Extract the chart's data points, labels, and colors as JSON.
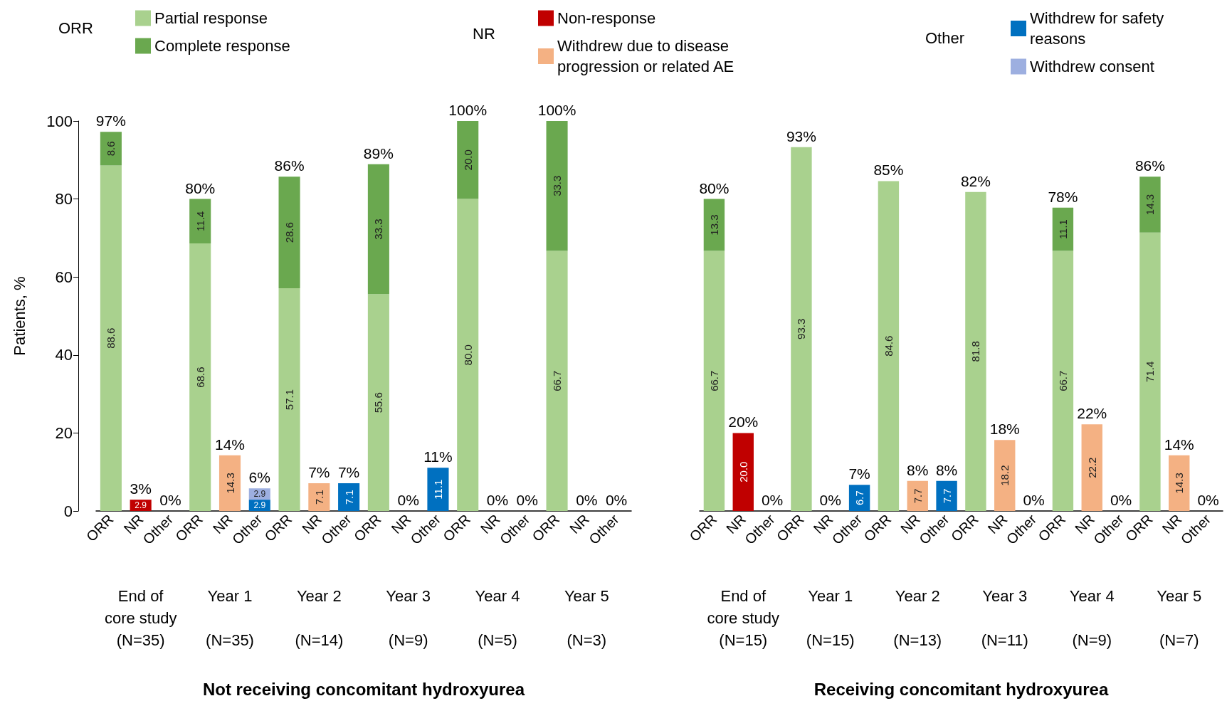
{
  "chart_data": [
    {
      "type": "bar",
      "stacked": true,
      "ylabel": "Patients, %",
      "xlabel": "Not receiving concomitant hydroxyurea",
      "ylim": [
        0,
        100
      ],
      "yticks": [
        0,
        20,
        40,
        60,
        80,
        100
      ],
      "grid": false,
      "legend": "top",
      "categories": [
        "ORR",
        "NR",
        "Other",
        "ORR",
        "NR",
        "Other",
        "ORR",
        "NR",
        "Other",
        "ORR",
        "NR",
        "Other",
        "ORR",
        "NR",
        "Other",
        "ORR",
        "NR",
        "Other"
      ],
      "series": [
        {
          "name": "Partial response",
          "color": "#a9d18e",
          "values": [
            88.6,
            null,
            null,
            68.6,
            null,
            null,
            57.1,
            null,
            null,
            55.6,
            null,
            null,
            80.0,
            null,
            null,
            66.7,
            null,
            null
          ],
          "value_labels": [
            "88.6",
            null,
            null,
            "68.6",
            null,
            null,
            "57.1",
            null,
            null,
            "55.6",
            null,
            null,
            "80.0",
            null,
            null,
            "66.7",
            null,
            null
          ]
        },
        {
          "name": "Complete response",
          "color": "#6aa84f",
          "values": [
            8.6,
            null,
            null,
            11.4,
            null,
            null,
            28.6,
            null,
            null,
            33.3,
            null,
            null,
            20.0,
            null,
            null,
            33.3,
            null,
            null
          ],
          "value_labels": [
            "8.6",
            null,
            null,
            "11.4",
            null,
            null,
            "28.6",
            null,
            null,
            "33.3",
            null,
            null,
            "20.0",
            null,
            null,
            "33.3",
            null,
            null
          ]
        },
        {
          "name": "Non-response",
          "color": "#c00000",
          "values": [
            null,
            2.9,
            null,
            null,
            null,
            null,
            null,
            null,
            null,
            null,
            null,
            null,
            null,
            null,
            null,
            null,
            null,
            null
          ],
          "value_labels": [
            null,
            "2.9",
            null,
            null,
            null,
            null,
            null,
            null,
            null,
            null,
            null,
            null,
            null,
            null,
            null,
            null,
            null,
            null
          ]
        },
        {
          "name": "Withdrew due to disease progression or related AE",
          "color": "#f4b183",
          "values": [
            null,
            null,
            null,
            null,
            14.3,
            null,
            null,
            7.1,
            null,
            null,
            null,
            null,
            null,
            null,
            null,
            null,
            null,
            null
          ],
          "value_labels": [
            null,
            null,
            null,
            null,
            "14.3",
            null,
            null,
            "7.1",
            null,
            null,
            null,
            null,
            null,
            null,
            null,
            null,
            null,
            null
          ]
        },
        {
          "name": "Withdrew for safety reasons",
          "color": "#0070c0",
          "values": [
            null,
            null,
            null,
            null,
            null,
            2.9,
            null,
            null,
            7.1,
            null,
            null,
            11.1,
            null,
            null,
            null,
            null,
            null,
            null
          ],
          "value_labels": [
            null,
            null,
            null,
            null,
            null,
            "2.9",
            null,
            null,
            "7.1",
            null,
            null,
            "11.1",
            null,
            null,
            null,
            null,
            null,
            null
          ]
        },
        {
          "name": "Withdrew consent",
          "color": "#9dafe0",
          "values": [
            null,
            null,
            null,
            null,
            null,
            2.9,
            null,
            null,
            null,
            null,
            null,
            null,
            null,
            null,
            null,
            null,
            null,
            null
          ],
          "value_labels": [
            null,
            null,
            null,
            null,
            null,
            "2.9",
            null,
            null,
            null,
            null,
            null,
            null,
            null,
            null,
            null,
            null,
            null,
            null
          ]
        }
      ],
      "totals": [
        "97%",
        "3%",
        "0%",
        "80%",
        "14%",
        "6%",
        "86%",
        "7%",
        "7%",
        "89%",
        "0%",
        "11%",
        "100%",
        "0%",
        "0%",
        "100%",
        "0%",
        "0%"
      ],
      "annotations": [
        "ORR",
        "NR",
        "Other",
        "End of\ncore study\n(N=35)",
        "Year 1\n(N=35)",
        "Year 2\n(N=14)",
        "Year 3\n(N=9)",
        "Year 4\n(N=5)",
        "Year 5\n(N=3)"
      ]
    },
    {
      "type": "bar",
      "stacked": true,
      "xlabel": "Receiving concomitant hydroxyurea",
      "ylim": [
        0,
        100
      ],
      "yticks": [
        0,
        20,
        40,
        60,
        80,
        100
      ],
      "grid": false,
      "tick_labels": "x",
      "categories": [
        "ORR",
        "NR",
        "Other",
        "ORR",
        "NR",
        "Other",
        "ORR",
        "NR",
        "Other",
        "ORR",
        "NR",
        "Other",
        "ORR",
        "NR",
        "Other",
        "ORR",
        "NR",
        "Other"
      ],
      "series": [
        {
          "name": "Partial response",
          "color": "#a9d18e",
          "values": [
            66.7,
            null,
            null,
            93.3,
            null,
            null,
            84.6,
            null,
            null,
            81.8,
            null,
            null,
            66.7,
            null,
            null,
            71.4,
            null,
            null
          ],
          "value_labels": [
            "66.7",
            null,
            null,
            "93.3",
            null,
            null,
            "84.6",
            null,
            null,
            "81.8",
            null,
            null,
            "66.7",
            null,
            null,
            "71.4",
            null,
            null
          ]
        },
        {
          "name": "Complete response",
          "color": "#6aa84f",
          "values": [
            13.3,
            null,
            null,
            null,
            null,
            null,
            null,
            null,
            null,
            null,
            null,
            null,
            11.1,
            null,
            null,
            14.3,
            null,
            null
          ],
          "value_labels": [
            "13.3",
            null,
            null,
            null,
            null,
            null,
            null,
            null,
            null,
            null,
            null,
            null,
            "11.1",
            null,
            null,
            "14.3",
            null,
            null
          ]
        },
        {
          "name": "Non-response",
          "color": "#c00000",
          "values": [
            null,
            20.0,
            null,
            null,
            null,
            null,
            null,
            null,
            null,
            null,
            null,
            null,
            null,
            null,
            null,
            null,
            null,
            null
          ],
          "value_labels": [
            null,
            "20.0",
            null,
            null,
            null,
            null,
            null,
            null,
            null,
            null,
            null,
            null,
            null,
            null,
            null,
            null,
            null,
            null
          ]
        },
        {
          "name": "Withdrew due to disease progression or related AE",
          "color": "#f4b183",
          "values": [
            null,
            null,
            null,
            null,
            null,
            null,
            null,
            7.7,
            null,
            null,
            18.2,
            null,
            null,
            22.2,
            null,
            null,
            14.3,
            null
          ],
          "value_labels": [
            null,
            null,
            null,
            null,
            null,
            null,
            null,
            "7.7",
            null,
            null,
            "18.2",
            null,
            null,
            "22.2",
            null,
            null,
            "14.3",
            null
          ]
        },
        {
          "name": "Withdrew for safety reasons",
          "color": "#0070c0",
          "values": [
            null,
            null,
            null,
            null,
            null,
            6.7,
            null,
            null,
            7.7,
            null,
            null,
            null,
            null,
            null,
            null,
            null,
            null,
            null
          ],
          "value_labels": [
            null,
            null,
            null,
            null,
            null,
            "6.7",
            null,
            null,
            "7.7",
            null,
            null,
            null,
            null,
            null,
            null,
            null,
            null,
            null
          ]
        }
      ],
      "totals": [
        "80%",
        "20%",
        "0%",
        "93%",
        "0%",
        "7%",
        "85%",
        "8%",
        "8%",
        "82%",
        "18%",
        "0%",
        "78%",
        "22%",
        "0%",
        "86%",
        "14%",
        "0%"
      ],
      "annotations": [
        "End of\ncore study\n(N=15)",
        "Year 1\n(N=15)",
        "Year 2\n(N=13)",
        "Year 3\n(N=11)",
        "Year 4\n(N=9)",
        "Year 5\n(N=7)"
      ]
    }
  ]
}
